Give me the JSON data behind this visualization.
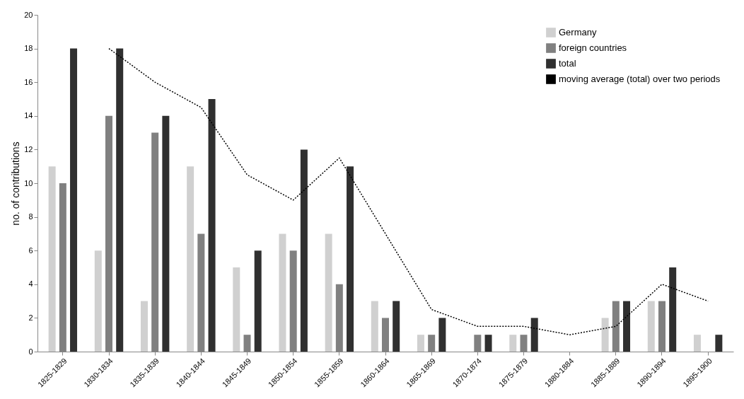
{
  "chart_data": {
    "type": "bar",
    "ylabel": "no. of contributions",
    "categories": [
      "1825-1829",
      "1830-1834",
      "1835-1839",
      "1840-1844",
      "1845-1849",
      "1850-1854",
      "1855-1859",
      "1860-1864",
      "1865-1869",
      "1870-1874",
      "1875-1879",
      "1880-1884",
      "1885-1889",
      "1890-1894",
      "1895-1900"
    ],
    "series": [
      {
        "name": "Germany",
        "color": "#d0d0d0",
        "values": [
          11,
          6,
          3,
          11,
          5,
          7,
          7,
          3,
          1,
          0,
          1,
          0,
          2,
          3,
          1
        ]
      },
      {
        "name": "foreign countries",
        "color": "#808080",
        "values": [
          10,
          14,
          13,
          7,
          1,
          6,
          4,
          2,
          1,
          1,
          1,
          0,
          3,
          3,
          0
        ]
      },
      {
        "name": "total",
        "color": "#303030",
        "values": [
          18,
          18,
          14,
          15,
          6,
          12,
          11,
          3,
          2,
          1,
          2,
          0,
          3,
          5,
          1
        ]
      },
      {
        "name": "moving average (total) over two periods",
        "type": "line",
        "line_style": "dotted",
        "color": "#000000",
        "values": [
          null,
          18,
          16,
          14.5,
          10.5,
          9,
          11.5,
          7,
          2.5,
          1.5,
          1.5,
          1,
          1.5,
          4,
          3
        ]
      }
    ],
    "ylim": [
      0,
      20
    ],
    "yticks": [
      0,
      2,
      4,
      6,
      8,
      10,
      12,
      14,
      16,
      18,
      20
    ],
    "grid": false,
    "legend": "top right"
  }
}
